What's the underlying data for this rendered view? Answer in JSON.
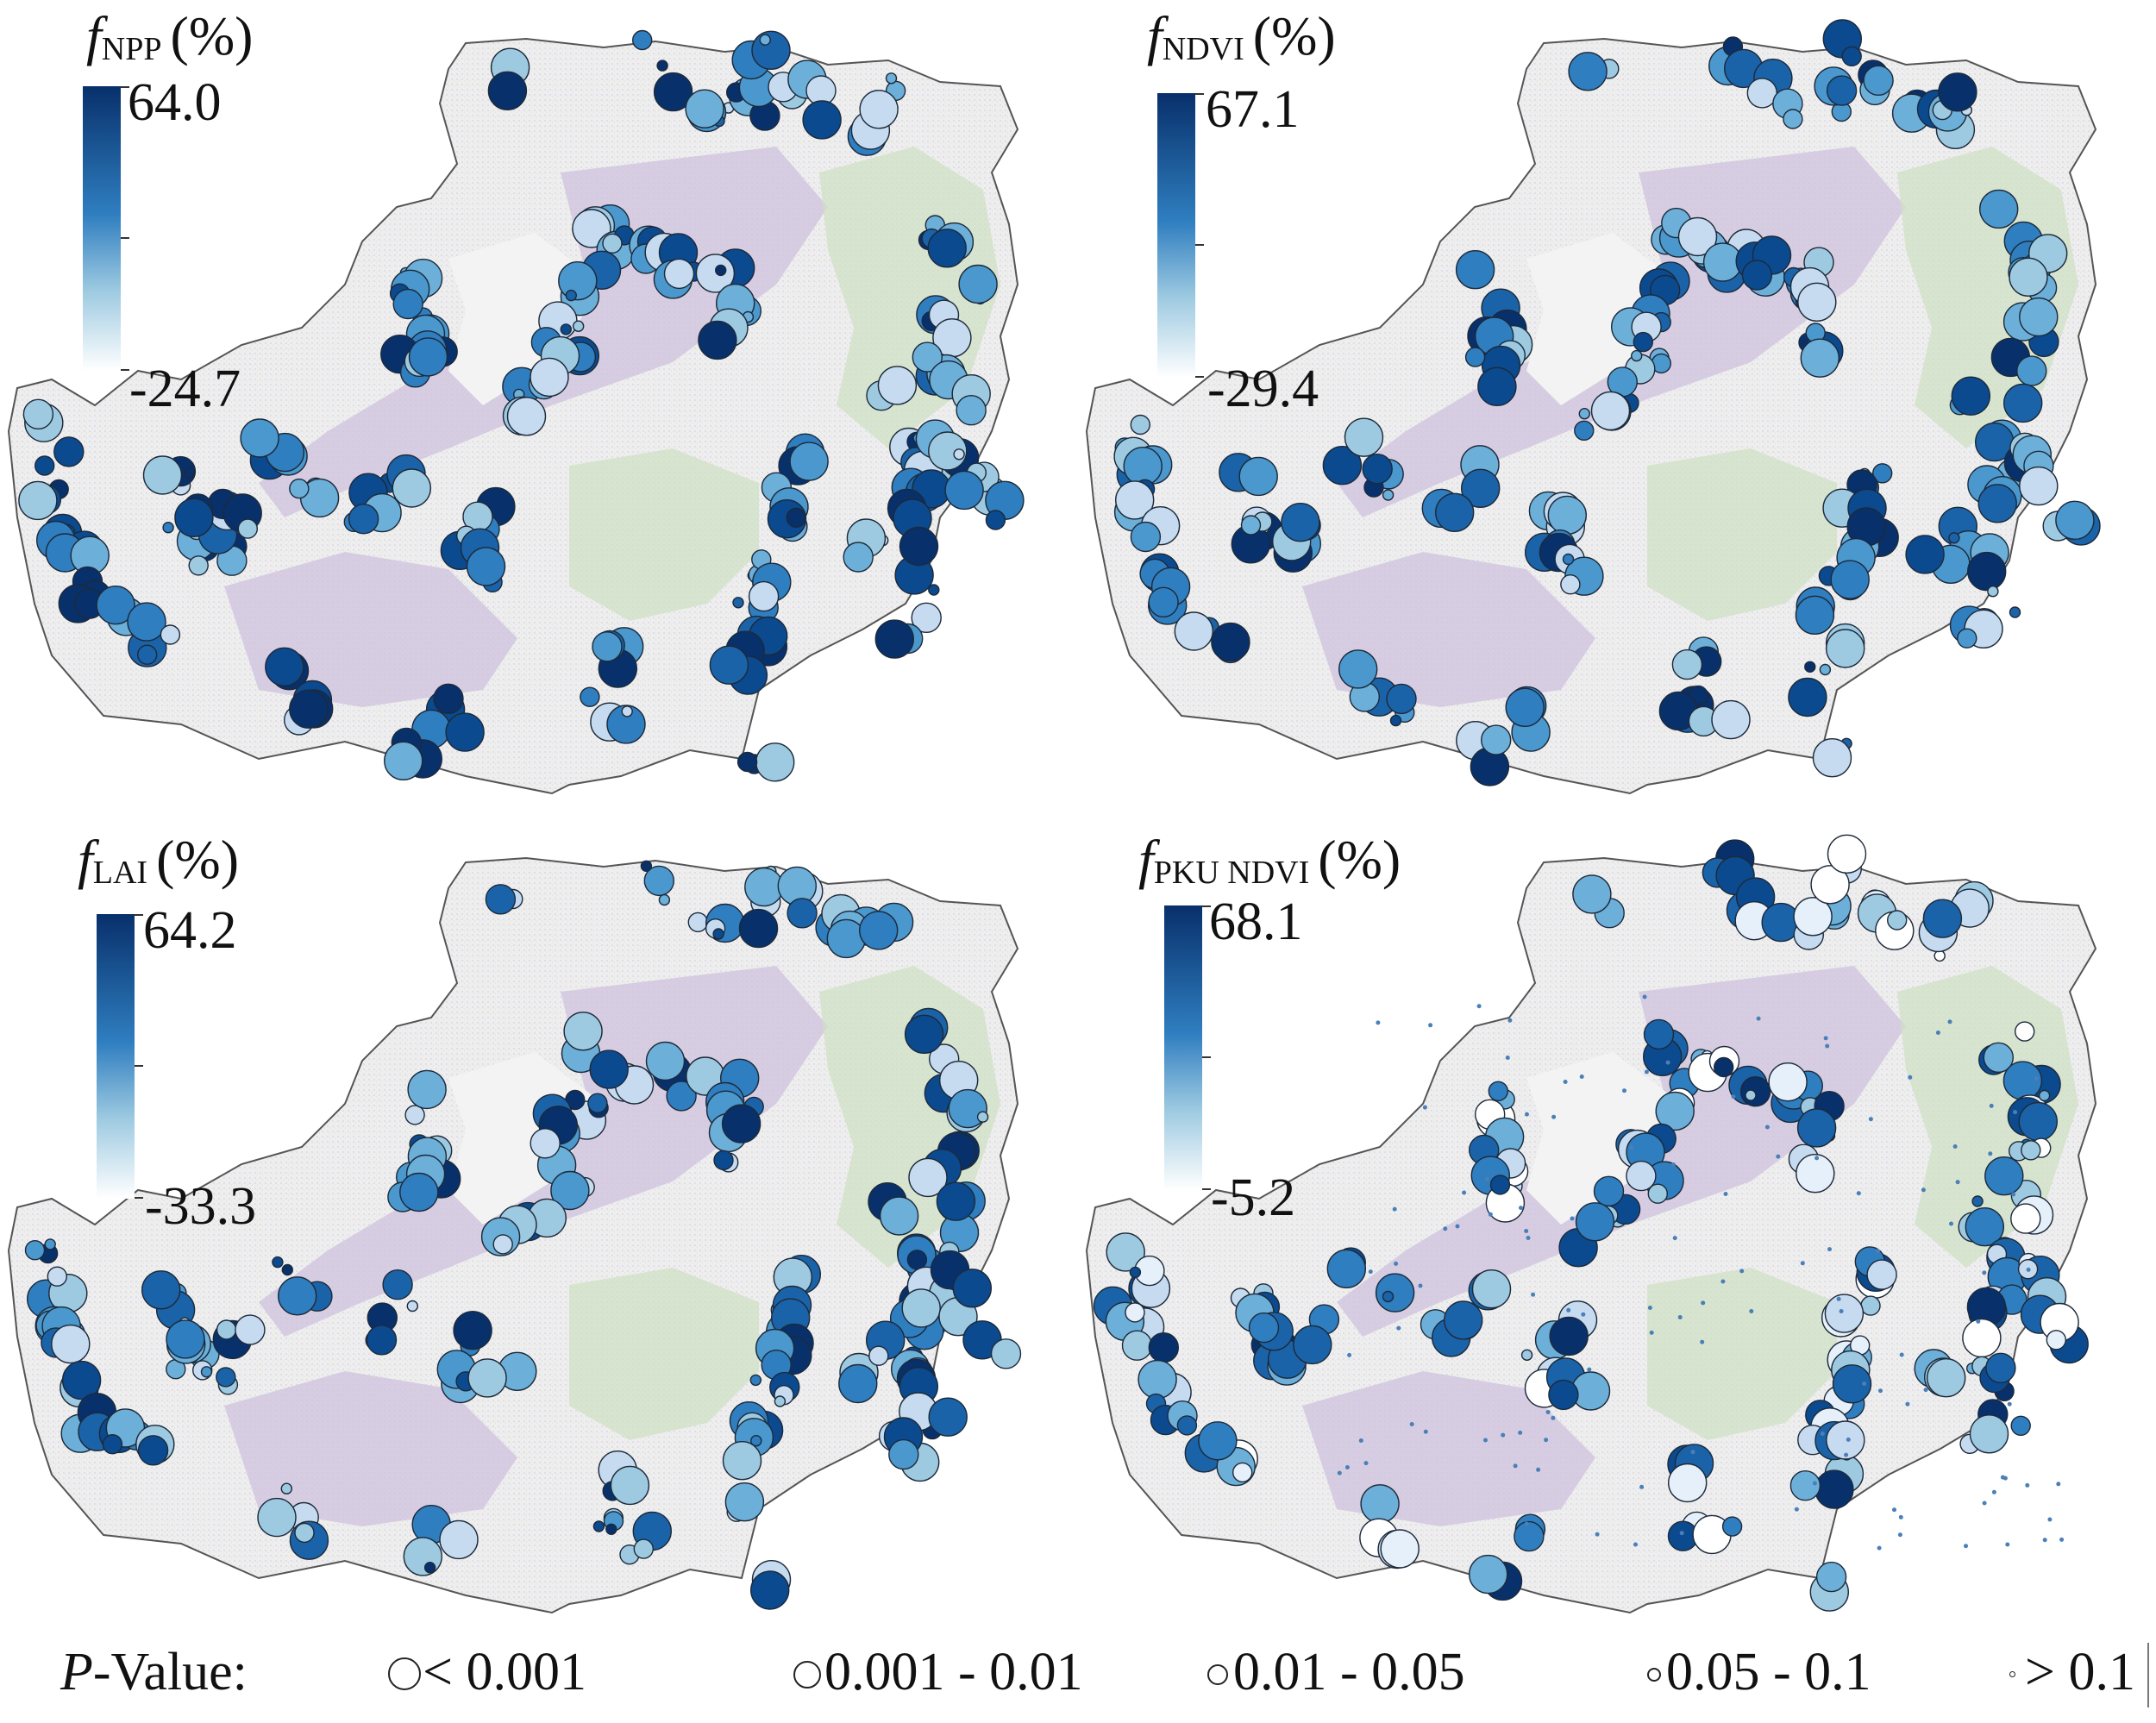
{
  "panels": [
    {
      "name": "npp",
      "var_italic": "f",
      "var_sub": "NPP",
      "unit": "(%)",
      "max": "64.0",
      "min": "-24.7",
      "style": "A"
    },
    {
      "name": "ndvi",
      "var_italic": "f",
      "var_sub": "NDVI",
      "unit": "(%)",
      "max": "67.1",
      "min": "-29.4",
      "style": "A"
    },
    {
      "name": "lai",
      "var_italic": "f",
      "var_sub": "LAI",
      "unit": "(%)",
      "max": "64.2",
      "min": "-33.3",
      "style": "A"
    },
    {
      "name": "pku-ndvi",
      "var_italic": "f",
      "var_sub": "PKU NDVI",
      "unit": "(%)",
      "max": "68.1",
      "min": "-5.2",
      "style": "B"
    }
  ],
  "legend": {
    "title_italic": "P",
    "title_rest": "-Value:",
    "items": [
      {
        "label": "< 0.001"
      },
      {
        "label": "0.001 - 0.01"
      },
      {
        "label": "0.01 - 0.05"
      },
      {
        "label": "0.05 - 0.1"
      },
      {
        "label": "> 0.1"
      }
    ]
  },
  "colors": {
    "dark": "#08306b",
    "mid": "#2f7ec0",
    "light": "#9ecae1",
    "map_fill": "#eeeeee",
    "purple": "#cfc2dd",
    "green": "#cfe0c4",
    "outline": "#555555"
  }
}
